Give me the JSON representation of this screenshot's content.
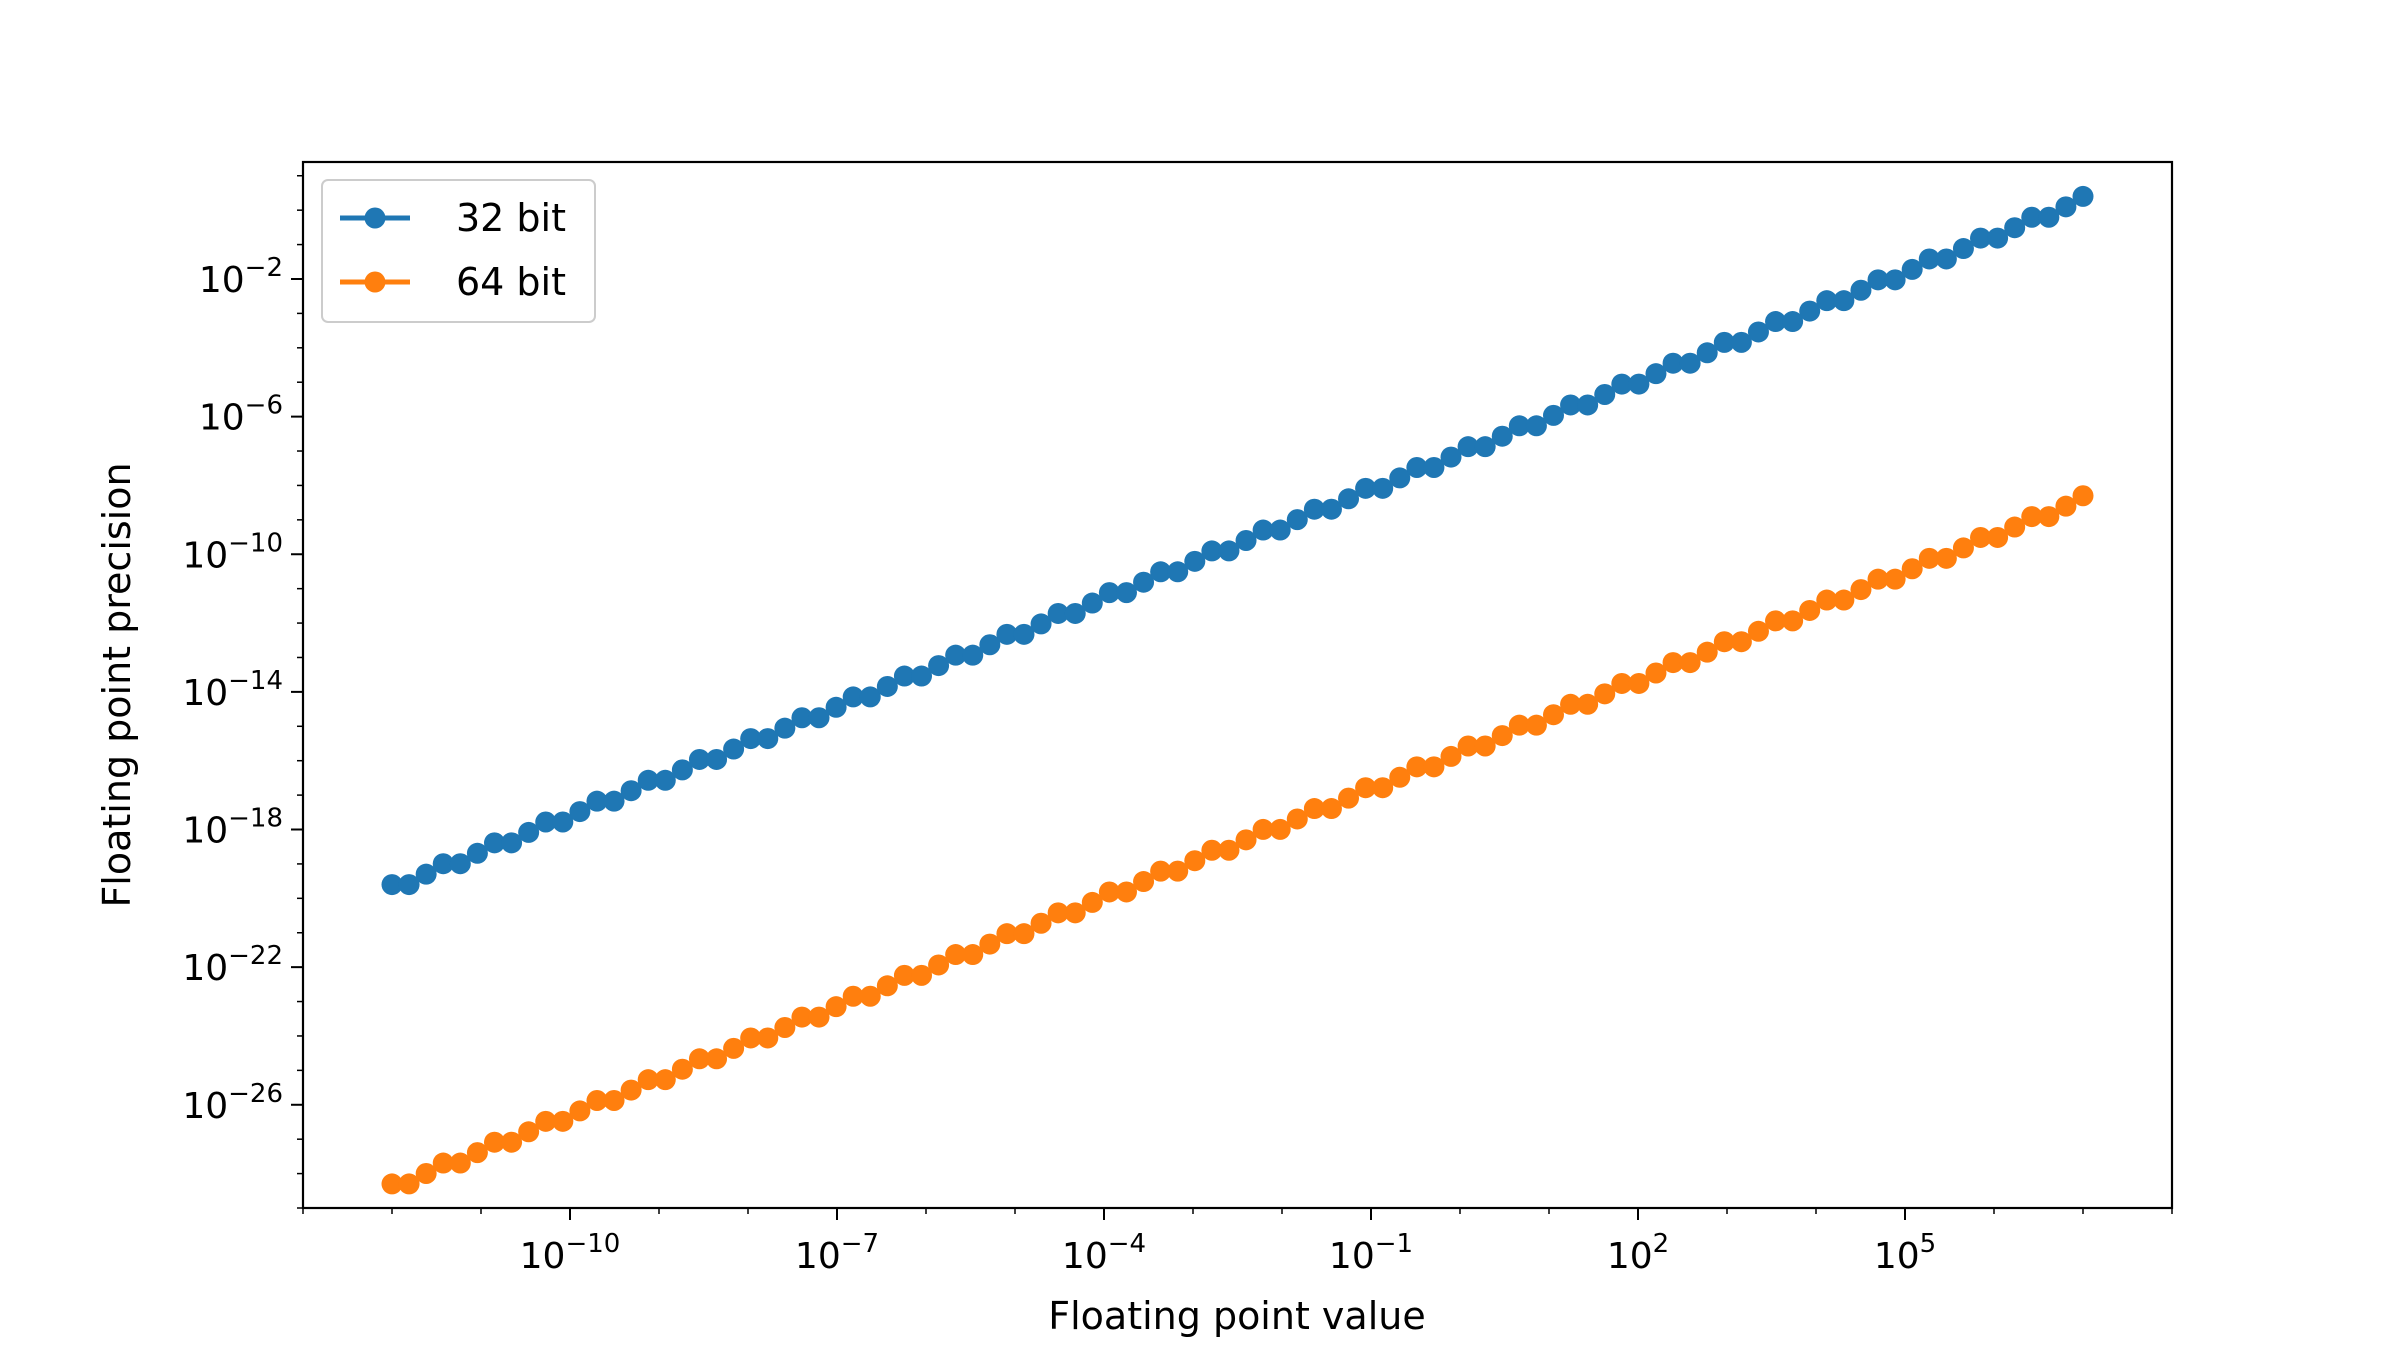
{
  "chart_data": {
    "type": "line",
    "title": "",
    "xlabel": "Floating point value",
    "ylabel": "Floating point precision",
    "xscale": "log",
    "yscale": "log",
    "xlim_log10": [
      -13,
      8
    ],
    "ylim_log10": [
      -29,
      1.4
    ],
    "grid": false,
    "legend_position": "top-left",
    "x_ticks": [
      {
        "exp": -10,
        "base": "10",
        "sup": "−10"
      },
      {
        "exp": -7,
        "base": "10",
        "sup": "−7"
      },
      {
        "exp": -4,
        "base": "10",
        "sup": "−4"
      },
      {
        "exp": -1,
        "base": "10",
        "sup": "−1"
      },
      {
        "exp": 2,
        "base": "10",
        "sup": "2"
      },
      {
        "exp": 5,
        "base": "10",
        "sup": "5"
      }
    ],
    "y_ticks": [
      {
        "exp": -2,
        "base": "10",
        "sup": "−2"
      },
      {
        "exp": -6,
        "base": "10",
        "sup": "−6"
      },
      {
        "exp": -10,
        "base": "10",
        "sup": "−10"
      },
      {
        "exp": -14,
        "base": "10",
        "sup": "−14"
      },
      {
        "exp": -18,
        "base": "10",
        "sup": "−18"
      },
      {
        "exp": -22,
        "base": "10",
        "sup": "−22"
      },
      {
        "exp": -26,
        "base": "10",
        "sup": "−26"
      }
    ],
    "x_log10": {
      "start": -12,
      "stop": 7,
      "count": 100
    },
    "series": [
      {
        "name": "32 bit",
        "color": "#1f77b4",
        "first_log10": -19.6,
        "last_log10": 0.4,
        "step_log10": 0.30103
      },
      {
        "name": "64 bit",
        "color": "#ff7f0e",
        "first_log10": -28.3,
        "last_log10": -8.3,
        "step_log10": 0.30103
      }
    ]
  }
}
